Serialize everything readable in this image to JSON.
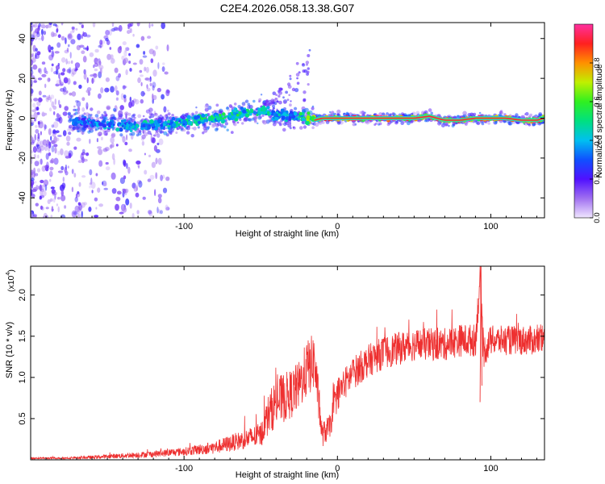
{
  "figure": {
    "title": "C2E4.2026.058.13.38.G07"
  },
  "colors": {
    "snr_line": "#ee3030",
    "track_low": "#7020f0",
    "track_mid": "#18c8e8",
    "track_high": "#50f050",
    "track_peak": "#ff2040"
  },
  "chart_data": [
    {
      "id": "spectrogram",
      "type": "heatmap",
      "title": "",
      "xlabel": "Height of straight line (km)",
      "ylabel": "Frequency (Hz)",
      "xlim": [
        -200,
        135
      ],
      "ylim": [
        -50,
        48
      ],
      "xticks": [
        -100,
        0,
        100
      ],
      "xtick_labels": [
        "-100",
        "0",
        "100"
      ],
      "yticks": [
        -40,
        -20,
        0,
        20,
        40
      ],
      "ytick_labels": [
        "-40",
        "-20",
        "0",
        "20",
        "40"
      ],
      "ridge": {
        "x": [
          -170,
          -150,
          -130,
          -110,
          -90,
          -70,
          -60,
          -50,
          -40,
          -30,
          -20,
          -15,
          -10,
          0,
          10,
          20,
          30,
          40,
          50,
          60,
          70,
          80,
          90,
          100,
          110,
          120,
          130,
          135
        ],
        "y": [
          -2,
          -3,
          -4,
          -3,
          -1,
          1,
          3,
          4,
          2,
          1,
          0,
          -1,
          0,
          0,
          0,
          0,
          0,
          0,
          0,
          1,
          -1,
          -1,
          0,
          0,
          0,
          -1,
          -1,
          0
        ],
        "amplitude": [
          0.35,
          0.4,
          0.45,
          0.45,
          0.5,
          0.55,
          0.5,
          0.5,
          0.45,
          0.4,
          0.6,
          0.8,
          0.9,
          0.95,
          0.95,
          0.95,
          0.95,
          0.95,
          0.95,
          0.9,
          0.9,
          0.95,
          0.95,
          0.95,
          0.95,
          0.9,
          0.9,
          0.85
        ]
      },
      "colorbar": {
        "label": "Normalized spectral amplitude",
        "range": [
          0,
          1
        ],
        "ticks": [
          0.0,
          0.2,
          0.4,
          0.6,
          0.8
        ],
        "tick_labels": [
          "0.0",
          "0.2",
          "0.4",
          "0.6",
          "0.8"
        ],
        "stops": [
          {
            "value": 0.0,
            "color": "#f0e6ff"
          },
          {
            "value": 0.1,
            "color": "#a070f0"
          },
          {
            "value": 0.2,
            "color": "#5010ff"
          },
          {
            "value": 0.3,
            "color": "#1050ff"
          },
          {
            "value": 0.4,
            "color": "#00c0f0"
          },
          {
            "value": 0.5,
            "color": "#00e080"
          },
          {
            "value": 0.6,
            "color": "#30f020"
          },
          {
            "value": 0.7,
            "color": "#c0f000"
          },
          {
            "value": 0.8,
            "color": "#ff9000"
          },
          {
            "value": 0.9,
            "color": "#ff2020"
          },
          {
            "value": 1.0,
            "color": "#ff30a0"
          }
        ]
      }
    },
    {
      "id": "snr",
      "type": "line",
      "title": "",
      "xlabel": "Height of straight line (km)",
      "ylabel": "SNR (10 * v/v)",
      "y_multiplier": "(x10",
      "y_multiplier_exp": "4",
      "y_multiplier_close": ")",
      "xlim": [
        -200,
        135
      ],
      "ylim": [
        0,
        2.35
      ],
      "xticks": [
        -100,
        0,
        100
      ],
      "xtick_labels": [
        "-100",
        "0",
        "100"
      ],
      "yticks": [
        0.5,
        1.0,
        1.5,
        2.0
      ],
      "ytick_labels": [
        "0.5",
        "1.0",
        "1.5",
        "2.0"
      ],
      "series": [
        {
          "name": "SNR",
          "x": [
            -200,
            -180,
            -160,
            -140,
            -120,
            -100,
            -80,
            -70,
            -60,
            -50,
            -45,
            -40,
            -35,
            -30,
            -25,
            -20,
            -15,
            -10,
            -5,
            0,
            10,
            20,
            30,
            40,
            50,
            60,
            70,
            80,
            90,
            93,
            95,
            100,
            110,
            120,
            130,
            135
          ],
          "y": [
            0.02,
            0.02,
            0.03,
            0.05,
            0.07,
            0.1,
            0.15,
            0.2,
            0.25,
            0.3,
            0.55,
            0.7,
            0.75,
            0.8,
            0.9,
            1.1,
            1.2,
            0.3,
            0.4,
            0.8,
            1.05,
            1.2,
            1.3,
            1.35,
            1.4,
            1.4,
            1.4,
            1.45,
            1.45,
            2.2,
            1.3,
            1.45,
            1.45,
            1.45,
            1.45,
            1.45
          ],
          "noise": [
            0.01,
            0.01,
            0.02,
            0.03,
            0.04,
            0.05,
            0.08,
            0.1,
            0.12,
            0.15,
            0.25,
            0.3,
            0.3,
            0.3,
            0.3,
            0.35,
            0.35,
            0.15,
            0.15,
            0.2,
            0.2,
            0.2,
            0.2,
            0.2,
            0.2,
            0.2,
            0.2,
            0.2,
            0.2,
            0.2,
            0.2,
            0.18,
            0.18,
            0.18,
            0.18,
            0.18
          ]
        }
      ]
    }
  ]
}
